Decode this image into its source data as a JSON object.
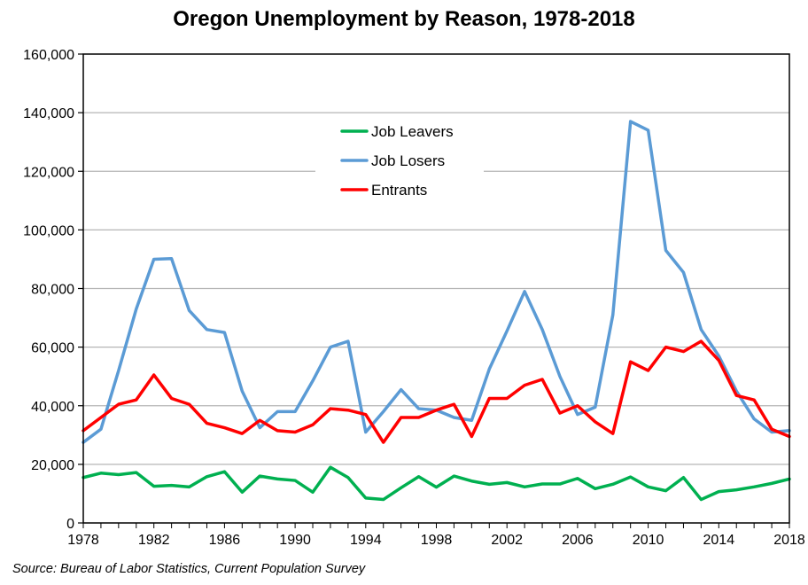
{
  "chart_data": {
    "type": "line",
    "title": "Oregon Unemployment by Reason, 1978-2018",
    "source": "Source: Bureau of Labor Statistics, Current Population Survey",
    "xlabel": "",
    "ylabel": "",
    "xlim": [
      1978,
      2018
    ],
    "ylim": [
      0,
      160000
    ],
    "x_ticks": [
      1978,
      1982,
      1986,
      1990,
      1994,
      1998,
      2002,
      2006,
      2010,
      2014,
      2018
    ],
    "y_ticks": [
      0,
      20000,
      40000,
      60000,
      80000,
      100000,
      120000,
      140000,
      160000
    ],
    "x_tick_labels": [
      "1978",
      "1982",
      "1986",
      "1990",
      "1994",
      "1998",
      "2002",
      "2006",
      "2010",
      "2014",
      "2018"
    ],
    "y_tick_labels": [
      "0",
      "20,000",
      "40,000",
      "60,000",
      "80,000",
      "100,000",
      "120,000",
      "140,000",
      "160,000"
    ],
    "grid": "horizontal",
    "legend_position": "top-center",
    "x": [
      1978,
      1979,
      1980,
      1981,
      1982,
      1983,
      1984,
      1985,
      1986,
      1987,
      1988,
      1989,
      1990,
      1991,
      1992,
      1993,
      1994,
      1995,
      1996,
      1997,
      1998,
      1999,
      2000,
      2001,
      2002,
      2003,
      2004,
      2005,
      2006,
      2007,
      2008,
      2009,
      2010,
      2011,
      2012,
      2013,
      2014,
      2015,
      2016,
      2017,
      2018
    ],
    "series": [
      {
        "name": "Job Leavers",
        "color": "#00b050",
        "values": [
          15500,
          17000,
          16500,
          17200,
          12500,
          12800,
          12300,
          15800,
          17500,
          10500,
          16000,
          15000,
          14500,
          10500,
          19000,
          15500,
          8500,
          8000,
          12000,
          15800,
          12200,
          16000,
          14300,
          13200,
          13800,
          12300,
          13300,
          13300,
          15200,
          11700,
          13200,
          15700,
          12300,
          11000,
          15500,
          8000,
          10700,
          11300,
          12300,
          13500,
          15000
        ]
      },
      {
        "name": "Job Losers",
        "color": "#5b9bd5",
        "values": [
          27500,
          32000,
          52000,
          73000,
          90000,
          90200,
          72500,
          66000,
          65000,
          45000,
          32500,
          38000,
          38000,
          48500,
          60000,
          62000,
          31000,
          38000,
          45500,
          39000,
          38500,
          36000,
          35000,
          52500,
          65500,
          79000,
          66000,
          50000,
          37000,
          39500,
          71000,
          137000,
          134000,
          93000,
          85500,
          66000,
          57000,
          45000,
          35500,
          31000,
          31500
        ]
      },
      {
        "name": "Entrants",
        "color": "#ff0000",
        "values": [
          31500,
          36000,
          40500,
          42000,
          50500,
          42500,
          40500,
          34000,
          32500,
          30500,
          35000,
          31500,
          31000,
          33500,
          39000,
          38500,
          37000,
          27500,
          36000,
          36000,
          38500,
          40500,
          29500,
          42500,
          42500,
          47000,
          49000,
          37500,
          40000,
          34500,
          30500,
          55000,
          52000,
          60000,
          58500,
          62000,
          55500,
          43500,
          42000,
          32000,
          29500
        ]
      }
    ]
  }
}
